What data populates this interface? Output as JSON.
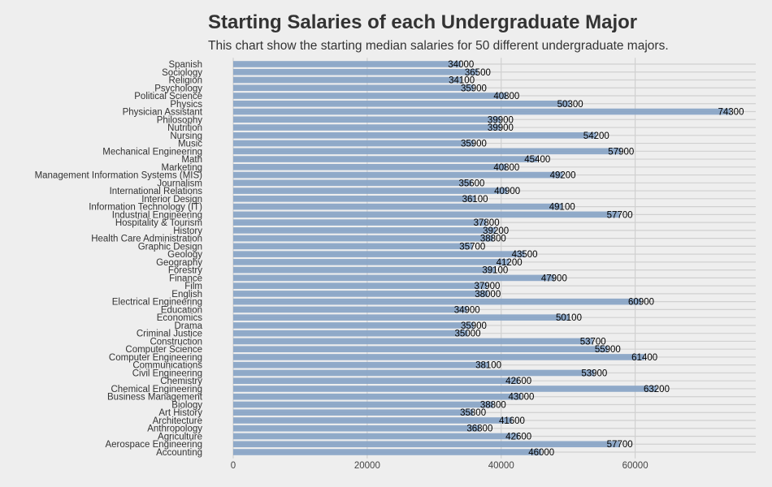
{
  "chart_data": {
    "type": "bar",
    "orientation": "horizontal",
    "title": "Starting Salaries of each Undergraduate Major",
    "subtitle": "This chart show the starting median salaries for 50 different undergraduate majors.",
    "xlabel": "",
    "ylabel": "",
    "xlim": [
      0,
      78000
    ],
    "xticks": [
      0,
      20000,
      40000,
      60000
    ],
    "xtick_labels": [
      "0",
      "20000",
      "40000",
      "60000"
    ],
    "grid": true,
    "bar_color": "#8aa5c6",
    "categories": [
      "Accounting",
      "Aerospace Engineering",
      "Agriculture",
      "Anthropology",
      "Architecture",
      "Art History",
      "Biology",
      "Business Management",
      "Chemical Engineering",
      "Chemistry",
      "Civil Engineering",
      "Communications",
      "Computer Engineering",
      "Computer Science",
      "Construction",
      "Criminal Justice",
      "Drama",
      "Economics",
      "Education",
      "Electrical Engineering",
      "English",
      "Film",
      "Finance",
      "Forestry",
      "Geography",
      "Geology",
      "Graphic Design",
      "Health Care Administration",
      "History",
      "Hospitality & Tourism",
      "Industrial Engineering",
      "Information Technology (IT)",
      "Interior Design",
      "International Relations",
      "Journalism",
      "Management Information Systems (MIS)",
      "Marketing",
      "Math",
      "Mechanical Engineering",
      "Music",
      "Nursing",
      "Nutrition",
      "Philosophy",
      "Physician Assistant",
      "Physics",
      "Political Science",
      "Psychology",
      "Religion",
      "Sociology",
      "Spanish"
    ],
    "values": [
      46000,
      57700,
      42600,
      36800,
      41600,
      35800,
      38800,
      43000,
      63200,
      42600,
      53900,
      38100,
      61400,
      55900,
      53700,
      35000,
      35900,
      50100,
      34900,
      60900,
      38000,
      37900,
      47900,
      39100,
      41200,
      43500,
      35700,
      38800,
      39200,
      37800,
      57700,
      49100,
      36100,
      40900,
      35600,
      49200,
      40800,
      45400,
      57900,
      35900,
      54200,
      39900,
      39900,
      74300,
      50300,
      40800,
      35900,
      34100,
      36500,
      34000
    ]
  }
}
